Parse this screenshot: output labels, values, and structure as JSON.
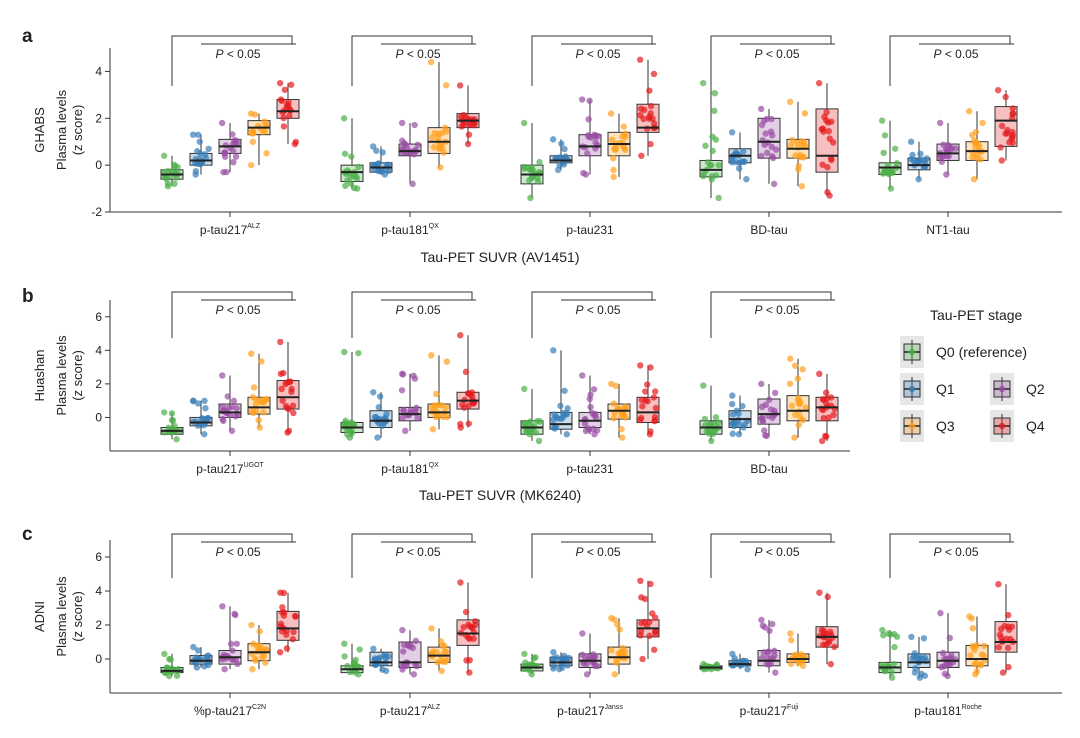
{
  "figure": {
    "p_label": "P",
    "sig_text": " < 0.05",
    "legend": {
      "title": "Tau-PET stage",
      "entries": [
        {
          "id": "Q0",
          "label": "Q0 (reference)"
        },
        {
          "id": "Q1",
          "label": "Q1"
        },
        {
          "id": "Q2",
          "label": "Q2"
        },
        {
          "id": "Q3",
          "label": "Q3"
        },
        {
          "id": "Q4",
          "label": "Q4"
        }
      ],
      "colors": {
        "Q0": "#4daf4a",
        "Q1": "#377eb8",
        "Q2": "#984ea3",
        "Q3": "#ff9f1c",
        "Q4": "#e41a1c"
      }
    }
  },
  "chart_data": [
    {
      "panel": "a",
      "type": "box",
      "cohort": "GHABS",
      "ylabel": [
        "Plasma levels",
        "(z score)"
      ],
      "xlabel": "Tau-PET SUVR (AV1451)",
      "ylim": [
        -2,
        5
      ],
      "yticks": [
        -2,
        0,
        2,
        4
      ],
      "series_order": [
        "Q0",
        "Q1",
        "Q2",
        "Q3",
        "Q4"
      ],
      "groups": [
        {
          "label": "p-tau217",
          "sup": "ALZ",
          "sig": true,
          "medians": [
            -0.4,
            0.2,
            0.8,
            1.6,
            2.3
          ],
          "q1": [
            -0.6,
            0.0,
            0.5,
            1.3,
            2.0
          ],
          "q3": [
            -0.2,
            0.5,
            1.1,
            1.9,
            2.8
          ],
          "min": [
            -0.9,
            -0.4,
            -0.3,
            0.0,
            0.9
          ],
          "max": [
            0.4,
            1.3,
            1.8,
            2.2,
            3.5
          ]
        },
        {
          "label": "p-tau181",
          "sup": "QX",
          "sig": true,
          "medians": [
            -0.3,
            -0.1,
            0.6,
            1.0,
            1.9
          ],
          "q1": [
            -0.7,
            -0.3,
            0.4,
            0.5,
            1.6
          ],
          "q3": [
            0.0,
            0.1,
            0.9,
            1.6,
            2.2
          ],
          "min": [
            -1.0,
            -0.4,
            -0.8,
            -0.1,
            0.9
          ],
          "max": [
            2.0,
            0.8,
            1.8,
            4.4,
            3.4
          ]
        },
        {
          "label": "p-tau231",
          "sup": "",
          "sig": true,
          "medians": [
            -0.4,
            0.2,
            0.8,
            0.9,
            1.6
          ],
          "q1": [
            -0.8,
            0.1,
            0.4,
            0.4,
            1.4
          ],
          "q3": [
            0.0,
            0.4,
            1.3,
            1.4,
            2.6
          ],
          "min": [
            -1.4,
            -0.2,
            -0.4,
            -0.5,
            0.4
          ],
          "max": [
            1.8,
            1.1,
            2.8,
            2.2,
            4.5
          ]
        },
        {
          "label": "BD-tau",
          "sup": "",
          "sig": true,
          "medians": [
            -0.2,
            0.4,
            1.0,
            0.7,
            0.4
          ],
          "q1": [
            -0.5,
            0.1,
            0.3,
            0.3,
            -0.3
          ],
          "q3": [
            0.2,
            0.7,
            2.0,
            1.1,
            2.4
          ],
          "min": [
            -1.4,
            -0.6,
            -0.8,
            -0.9,
            -1.3
          ],
          "max": [
            3.5,
            1.4,
            2.4,
            2.7,
            3.5
          ]
        },
        {
          "label": "NT1-tau",
          "sup": "",
          "sig": true,
          "medians": [
            -0.1,
            0.0,
            0.5,
            0.6,
            1.9
          ],
          "q1": [
            -0.4,
            -0.2,
            0.2,
            0.2,
            0.8
          ],
          "q3": [
            0.1,
            0.3,
            0.9,
            1.0,
            2.5
          ],
          "min": [
            -1.0,
            -0.6,
            -0.4,
            -0.6,
            0.2
          ],
          "max": [
            1.9,
            1.0,
            1.8,
            2.3,
            3.2
          ]
        }
      ]
    },
    {
      "panel": "b",
      "type": "box",
      "cohort": "Huashan",
      "ylabel": [
        "Plasma levels",
        "(z score)"
      ],
      "xlabel": "Tau-PET SUVR (MK6240)",
      "ylim": [
        -2,
        7
      ],
      "yticks": [
        0,
        2,
        4,
        6
      ],
      "series_order": [
        "Q0",
        "Q1",
        "Q2",
        "Q3",
        "Q4"
      ],
      "groups": [
        {
          "label": "p-tau217",
          "sup": "UGOT",
          "sig": true,
          "medians": [
            -0.8,
            -0.3,
            0.3,
            0.6,
            1.2
          ],
          "q1": [
            -1.0,
            -0.5,
            0.0,
            0.2,
            0.5
          ],
          "q3": [
            -0.6,
            0.0,
            0.8,
            1.2,
            2.2
          ],
          "min": [
            -1.3,
            -1.0,
            -0.8,
            -0.6,
            -0.9
          ],
          "max": [
            0.3,
            1.0,
            2.5,
            3.8,
            4.5
          ]
        },
        {
          "label": "p-tau181",
          "sup": "QX",
          "sig": true,
          "medians": [
            -0.6,
            -0.2,
            0.2,
            0.3,
            1.0
          ],
          "q1": [
            -0.9,
            -0.6,
            -0.2,
            0.0,
            0.5
          ],
          "q3": [
            -0.3,
            0.4,
            0.6,
            0.8,
            1.5
          ],
          "min": [
            -1.2,
            -1.2,
            -0.8,
            -0.7,
            -0.6
          ],
          "max": [
            3.9,
            1.5,
            2.6,
            3.7,
            4.9
          ]
        },
        {
          "label": "p-tau231",
          "sup": "",
          "sig": true,
          "medians": [
            -0.6,
            -0.4,
            -0.2,
            0.4,
            0.3
          ],
          "q1": [
            -1.0,
            -0.7,
            -0.6,
            -0.1,
            -0.3
          ],
          "q3": [
            -0.2,
            0.3,
            0.3,
            0.8,
            1.2
          ],
          "min": [
            -1.4,
            -1.0,
            -1.0,
            -1.2,
            -1.0
          ],
          "max": [
            1.7,
            4.0,
            2.5,
            2.0,
            3.1
          ]
        },
        {
          "label": "BD-tau",
          "sup": "",
          "sig": true,
          "medians": [
            -0.6,
            -0.1,
            0.2,
            0.4,
            0.6
          ],
          "q1": [
            -1.0,
            -0.6,
            -0.4,
            -0.2,
            -0.2
          ],
          "q3": [
            -0.2,
            0.4,
            1.1,
            1.3,
            1.2
          ],
          "min": [
            -1.4,
            -1.0,
            -1.1,
            -1.2,
            -1.4
          ],
          "max": [
            1.9,
            1.3,
            2.0,
            3.5,
            2.6
          ]
        }
      ]
    },
    {
      "panel": "c",
      "type": "box",
      "cohort": "ADNI",
      "ylabel": [
        "Plasma levels",
        "(z score)"
      ],
      "xlabel": "",
      "ylim": [
        -2,
        7
      ],
      "yticks": [
        0,
        2,
        4,
        6
      ],
      "series_order": [
        "Q0",
        "Q1",
        "Q2",
        "Q3",
        "Q4"
      ],
      "groups": [
        {
          "label": "%p-tau217",
          "sup": "C2N",
          "sig": true,
          "medians": [
            -0.7,
            -0.1,
            0.1,
            0.4,
            1.8
          ],
          "q1": [
            -0.8,
            -0.3,
            -0.3,
            -0.1,
            1.1
          ],
          "q3": [
            -0.5,
            0.2,
            0.5,
            0.9,
            2.8
          ],
          "min": [
            -1.0,
            -0.5,
            -0.6,
            -0.6,
            0.4
          ],
          "max": [
            0.3,
            0.7,
            3.1,
            2.0,
            3.9
          ]
        },
        {
          "label": "p-tau217",
          "sup": "ALZ",
          "sig": true,
          "medians": [
            -0.6,
            -0.2,
            -0.2,
            0.2,
            1.5
          ],
          "q1": [
            -0.8,
            -0.4,
            -0.5,
            -0.2,
            0.8
          ],
          "q3": [
            -0.4,
            0.4,
            1.0,
            0.7,
            2.3
          ],
          "min": [
            -0.9,
            -0.7,
            -0.9,
            -0.7,
            -0.8
          ],
          "max": [
            0.9,
            0.6,
            1.7,
            1.8,
            4.5
          ]
        },
        {
          "label": "p-tau217",
          "sup": "Janss",
          "sig": true,
          "medians": [
            -0.5,
            -0.2,
            -0.1,
            0.1,
            1.8
          ],
          "q1": [
            -0.7,
            -0.4,
            -0.5,
            -0.3,
            1.3
          ],
          "q3": [
            -0.3,
            0.1,
            0.3,
            0.7,
            2.3
          ],
          "min": [
            -0.9,
            -0.6,
            -0.9,
            -0.9,
            0.0
          ],
          "max": [
            0.3,
            0.4,
            1.5,
            2.4,
            4.6
          ]
        },
        {
          "label": "p-tau217",
          "sup": "Fuji",
          "sig": true,
          "medians": [
            -0.5,
            -0.3,
            -0.1,
            0.0,
            1.3
          ],
          "q1": [
            -0.6,
            -0.4,
            -0.4,
            -0.2,
            0.7
          ],
          "q3": [
            -0.4,
            -0.1,
            0.5,
            0.3,
            1.9
          ],
          "min": [
            -0.6,
            -0.6,
            -0.8,
            -0.4,
            -0.3
          ],
          "max": [
            -0.3,
            0.3,
            2.3,
            1.5,
            3.9
          ]
        },
        {
          "label": "p-tau181",
          "sup": "Roche",
          "sig": true,
          "medians": [
            -0.5,
            -0.2,
            -0.1,
            0.0,
            1.0
          ],
          "q1": [
            -0.8,
            -0.5,
            -0.5,
            -0.4,
            0.4
          ],
          "q3": [
            -0.2,
            0.3,
            0.4,
            0.8,
            2.2
          ],
          "min": [
            -1.1,
            -1.1,
            -1.0,
            -0.9,
            -0.8
          ],
          "max": [
            1.7,
            1.3,
            2.7,
            2.5,
            4.4
          ]
        }
      ]
    }
  ]
}
